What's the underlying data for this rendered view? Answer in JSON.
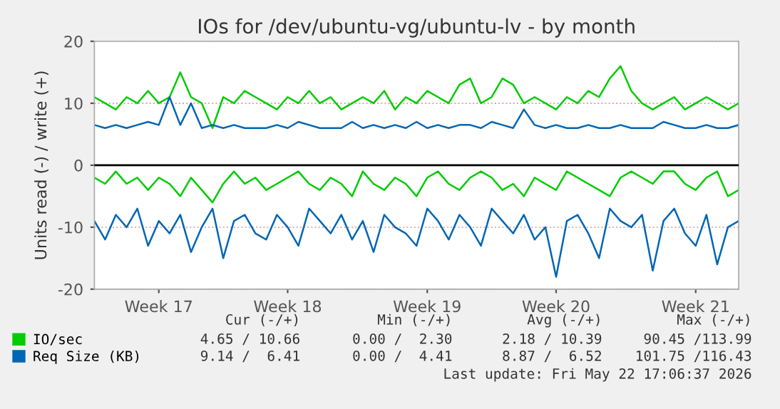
{
  "chart_data": {
    "type": "line",
    "title": "IOs for /dev/ubuntu-vg/ubuntu-lv - by month",
    "ylabel": "Units read (-) / write (+)",
    "categories": [
      null,
      null,
      null,
      null,
      null,
      null,
      "Week 17",
      null,
      null,
      null,
      null,
      null,
      null,
      null,
      null,
      null,
      null,
      null,
      "Week 18",
      null,
      null,
      null,
      null,
      null,
      null,
      null,
      null,
      null,
      null,
      null,
      null,
      "Week 19",
      null,
      null,
      null,
      null,
      null,
      null,
      null,
      null,
      null,
      null,
      null,
      "Week 20",
      null,
      null,
      null,
      null,
      null,
      null,
      null,
      null,
      null,
      null,
      null,
      null,
      "Week 21",
      null,
      null,
      null,
      null
    ],
    "series": [
      {
        "color": "#00cc00",
        "values": [
          -2,
          -3,
          -1,
          -3,
          -2,
          -4,
          -2,
          -3,
          -5,
          -2,
          -4,
          -6,
          -3,
          -1,
          -3,
          -2,
          -4,
          -3,
          -2,
          -1,
          -3,
          -4,
          -2,
          -3,
          -5,
          -1,
          -3,
          -4,
          -2,
          -3,
          -5,
          -2,
          -1,
          -3,
          -4,
          -2,
          -1,
          -2,
          -4,
          -3,
          -5,
          -2,
          -3,
          -4,
          -1,
          -2,
          -3,
          -4,
          -5,
          -2,
          -1,
          -2,
          -3,
          -1,
          -1,
          -3,
          -4,
          -2,
          -1,
          -5,
          -4
        ]
      },
      {
        "name": "IO/sec",
        "color": "#00cc00",
        "values": [
          11,
          10,
          9,
          11,
          10,
          12,
          10,
          11,
          15,
          11,
          10,
          6,
          11,
          10,
          12,
          11,
          10,
          9,
          11,
          10,
          12,
          10,
          11,
          9,
          10,
          11,
          10,
          12,
          9,
          11,
          10,
          12,
          11,
          10,
          13,
          14,
          10,
          11,
          14,
          13,
          10,
          11,
          10,
          9,
          11,
          10,
          12,
          11,
          14,
          16,
          12,
          10,
          9,
          10,
          11,
          9,
          10,
          11,
          10,
          9,
          10
        ]
      },
      {
        "color": "#0066b3",
        "values": [
          -9,
          -12,
          -8,
          -10,
          -7,
          -13,
          -9,
          -11,
          -8,
          -14,
          -10,
          -7,
          -15,
          -9,
          -8,
          -11,
          -12,
          -8,
          -10,
          -13,
          -7,
          -9,
          -11,
          -8,
          -12,
          -9,
          -14,
          -8,
          -10,
          -11,
          -13,
          -7,
          -9,
          -12,
          -8,
          -10,
          -13,
          -7,
          -9,
          -11,
          -8,
          -12,
          -10,
          -18,
          -9,
          -8,
          -11,
          -15,
          -7,
          -9,
          -10,
          -8,
          -17,
          -9,
          -7,
          -11,
          -13,
          -8,
          -16,
          -10,
          -9
        ]
      },
      {
        "name": "Req Size (KB)",
        "color": "#0066b3",
        "values": [
          6.5,
          6,
          6.5,
          6,
          6.5,
          7,
          6.5,
          11,
          6.5,
          10,
          6,
          6.5,
          6,
          6.5,
          6,
          6,
          6,
          6.5,
          6,
          7,
          6.5,
          6,
          6,
          6,
          7,
          6,
          6.5,
          6,
          6.5,
          6,
          7,
          6,
          6.5,
          6,
          6.5,
          6.5,
          6,
          7,
          6.5,
          6,
          9,
          6.5,
          6,
          6.5,
          6,
          6,
          6.5,
          6,
          6,
          6.5,
          6,
          6,
          6,
          7,
          6.5,
          6,
          6,
          6.5,
          6,
          6,
          6.5
        ]
      }
    ],
    "ylim": [
      -20,
      20
    ],
    "yticks": [
      -20,
      -10,
      0,
      10,
      20
    ],
    "grid": "y",
    "legend": "bottom left",
    "ref_lines": [
      {
        "axis": "y",
        "value": 0,
        "color": "#000000"
      }
    ],
    "annotations": [
      "Cur (-/+)",
      "Min (-/+)",
      "Avg (-/+)",
      "Max (-/+)",
      "4.65 / 10.66",
      "0.00 /  2.30",
      "2.18 / 10.39",
      "90.45 /113.99",
      "9.14 /  6.41",
      "0.00 /  4.41",
      "8.87 /  6.52",
      "101.75 /116.43",
      "Last update: Fri May 22 17:06:37 2026"
    ]
  }
}
